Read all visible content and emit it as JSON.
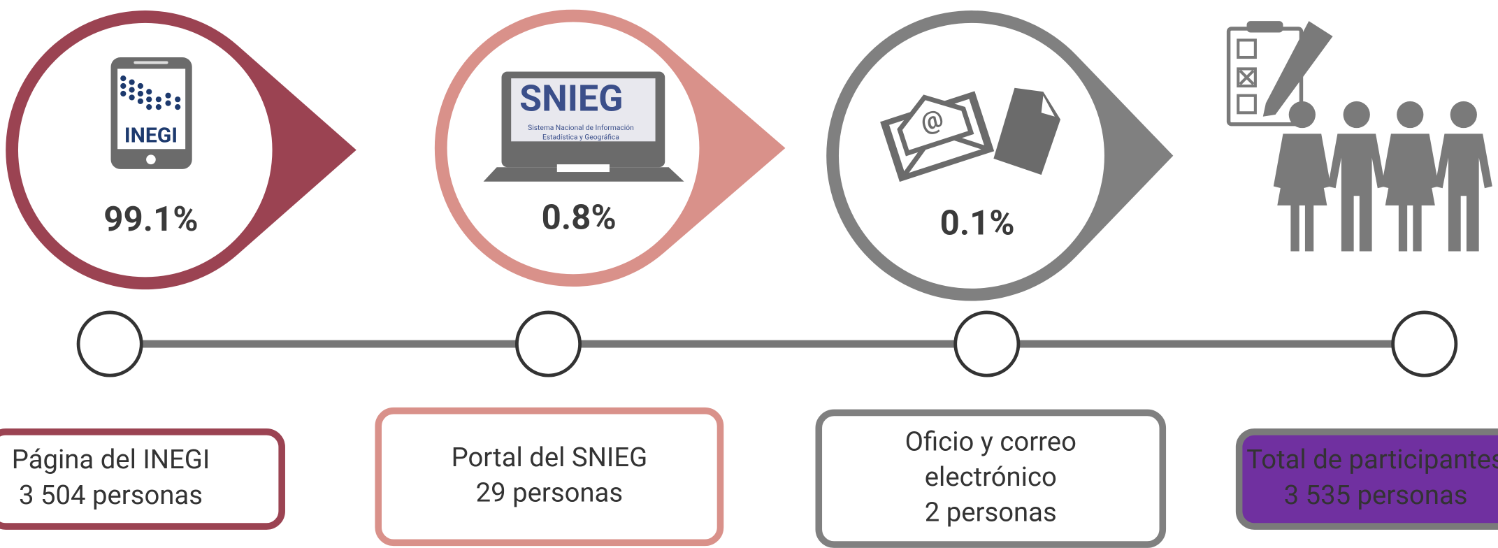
{
  "items": [
    {
      "percent": "99.1%",
      "label_lines": [
        "Página del INEGI"
      ],
      "count": "3 504 personas"
    },
    {
      "percent": "0.8%",
      "label_lines": [
        "Portal del SNIEG"
      ],
      "count": "29 personas"
    },
    {
      "percent": "0.1%",
      "label_lines": [
        "Oficio y correo",
        "electrónico"
      ],
      "count": "2 personas"
    }
  ],
  "total": {
    "label_lines": [
      "Total de participantes"
    ],
    "count": "3 535 personas"
  },
  "icons": {
    "inegi": "INEGI",
    "snieg": "SNIEG",
    "snieg_caption": [
      "Sistema Nacional de Información",
      "Estadística y Geográfica"
    ],
    "email": "@"
  }
}
